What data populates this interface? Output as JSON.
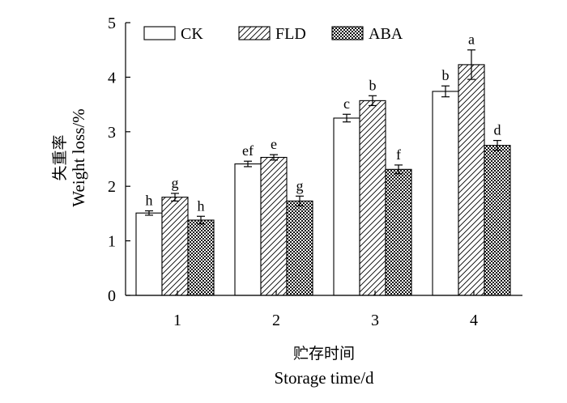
{
  "chart_data": {
    "type": "bar",
    "categories": [
      "1",
      "2",
      "3",
      "4"
    ],
    "series": [
      {
        "name": "CK",
        "pattern": "open",
        "values": [
          1.51,
          2.41,
          3.25,
          3.74
        ],
        "errors": [
          0.04,
          0.05,
          0.07,
          0.1
        ],
        "letters": [
          "h",
          "ef",
          "c",
          "b"
        ]
      },
      {
        "name": "FLD",
        "pattern": "hatch",
        "values": [
          1.8,
          2.53,
          3.57,
          4.23
        ],
        "errors": [
          0.07,
          0.05,
          0.09,
          0.27
        ],
        "letters": [
          "g",
          "e",
          "b",
          "a"
        ]
      },
      {
        "name": "ABA",
        "pattern": "dots",
        "values": [
          1.38,
          1.73,
          2.31,
          2.75
        ],
        "errors": [
          0.07,
          0.09,
          0.08,
          0.09
        ],
        "letters": [
          "h",
          "g",
          "f",
          "d"
        ]
      }
    ],
    "yticks": [
      "0",
      "1",
      "2",
      "3",
      "4",
      "5"
    ],
    "ylim": [
      0,
      5
    ],
    "ylabel_cn": "失重率",
    "ylabel": "Weight loss/%",
    "xlabel_cn": "贮存时间",
    "xlabel": "Storage time/d",
    "legend_position": "top",
    "grid": false
  }
}
